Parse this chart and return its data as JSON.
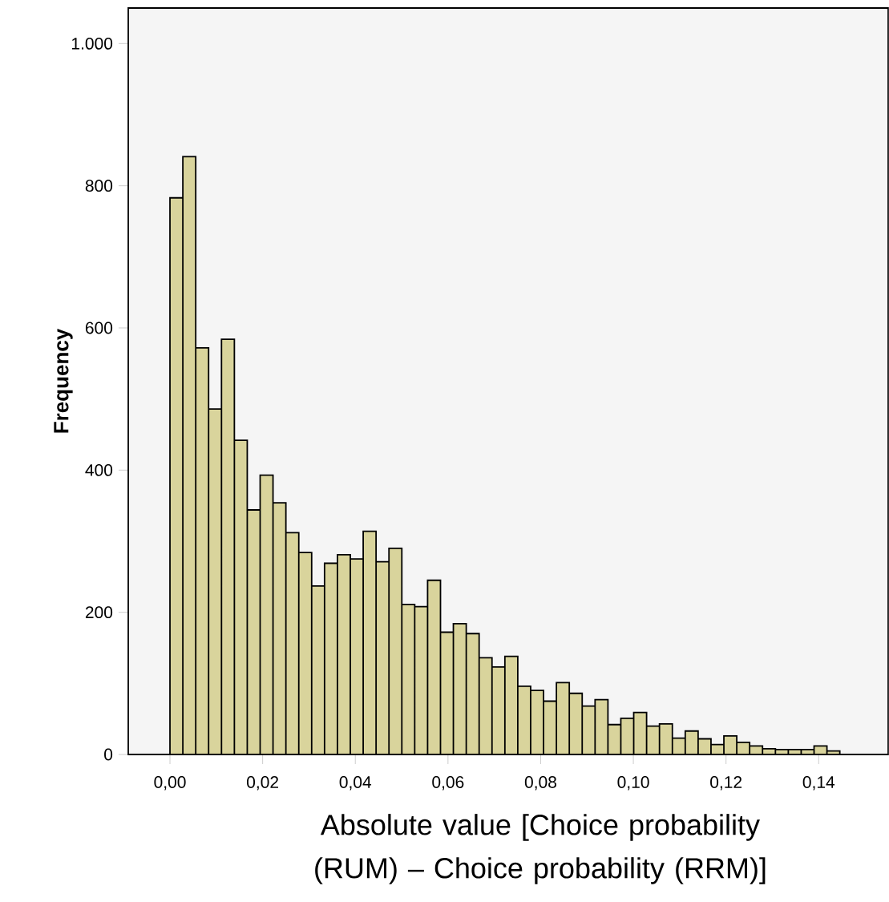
{
  "chart_data": {
    "type": "histogram",
    "xlabel": "Absolute value [Choice probability (RUM) – Choice probability (RRM)]",
    "ylabel": "Frequency",
    "bins": [
      0,
      0.00278,
      0.00556,
      0.00834,
      0.01112,
      0.0139,
      0.01668,
      0.01946,
      0.02224,
      0.02502,
      0.0278,
      0.03058,
      0.03336,
      0.03614,
      0.03892,
      0.0417,
      0.04448,
      0.04726,
      0.05004,
      0.05282,
      0.0556,
      0.05838,
      0.06116,
      0.06394,
      0.06672,
      0.0695,
      0.07228,
      0.07506,
      0.07784,
      0.08062,
      0.0834,
      0.08618,
      0.08896,
      0.09174,
      0.09452,
      0.0973,
      0.10008,
      0.10286,
      0.10564,
      0.10842,
      0.1112,
      0.11398,
      0.11676,
      0.11954,
      0.12232,
      0.1251,
      0.12788,
      0.13066,
      0.13344,
      0.13622,
      0.139,
      0.14178,
      0.14456
    ],
    "values": [
      783,
      841,
      572,
      486,
      584,
      442,
      344,
      393,
      354,
      312,
      284,
      237,
      269,
      281,
      275,
      314,
      271,
      290,
      211,
      208,
      245,
      172,
      184,
      170,
      136,
      123,
      138,
      96,
      90,
      75,
      101,
      86,
      68,
      77,
      42,
      51,
      59,
      40,
      43,
      23,
      33,
      22,
      14,
      26,
      17,
      12,
      8,
      7,
      7,
      7,
      12,
      5
    ],
    "color": "#d9d49c",
    "xlim": [
      -0.009,
      0.155
    ],
    "ylim": [
      0,
      1050
    ],
    "xticks": [
      {
        "value": 0,
        "label": "0,00"
      },
      {
        "value": 0.02,
        "label": "0,02"
      },
      {
        "value": 0.04,
        "label": "0,04"
      },
      {
        "value": 0.06,
        "label": "0,06"
      },
      {
        "value": 0.08,
        "label": "0,08"
      },
      {
        "value": 0.1,
        "label": "0,10"
      },
      {
        "value": 0.12,
        "label": "0,12"
      },
      {
        "value": 0.14,
        "label": "0,14"
      }
    ],
    "yticks": [
      0,
      200,
      400,
      600,
      800,
      {
        "value": 1000,
        "label": "1.000"
      }
    ]
  }
}
